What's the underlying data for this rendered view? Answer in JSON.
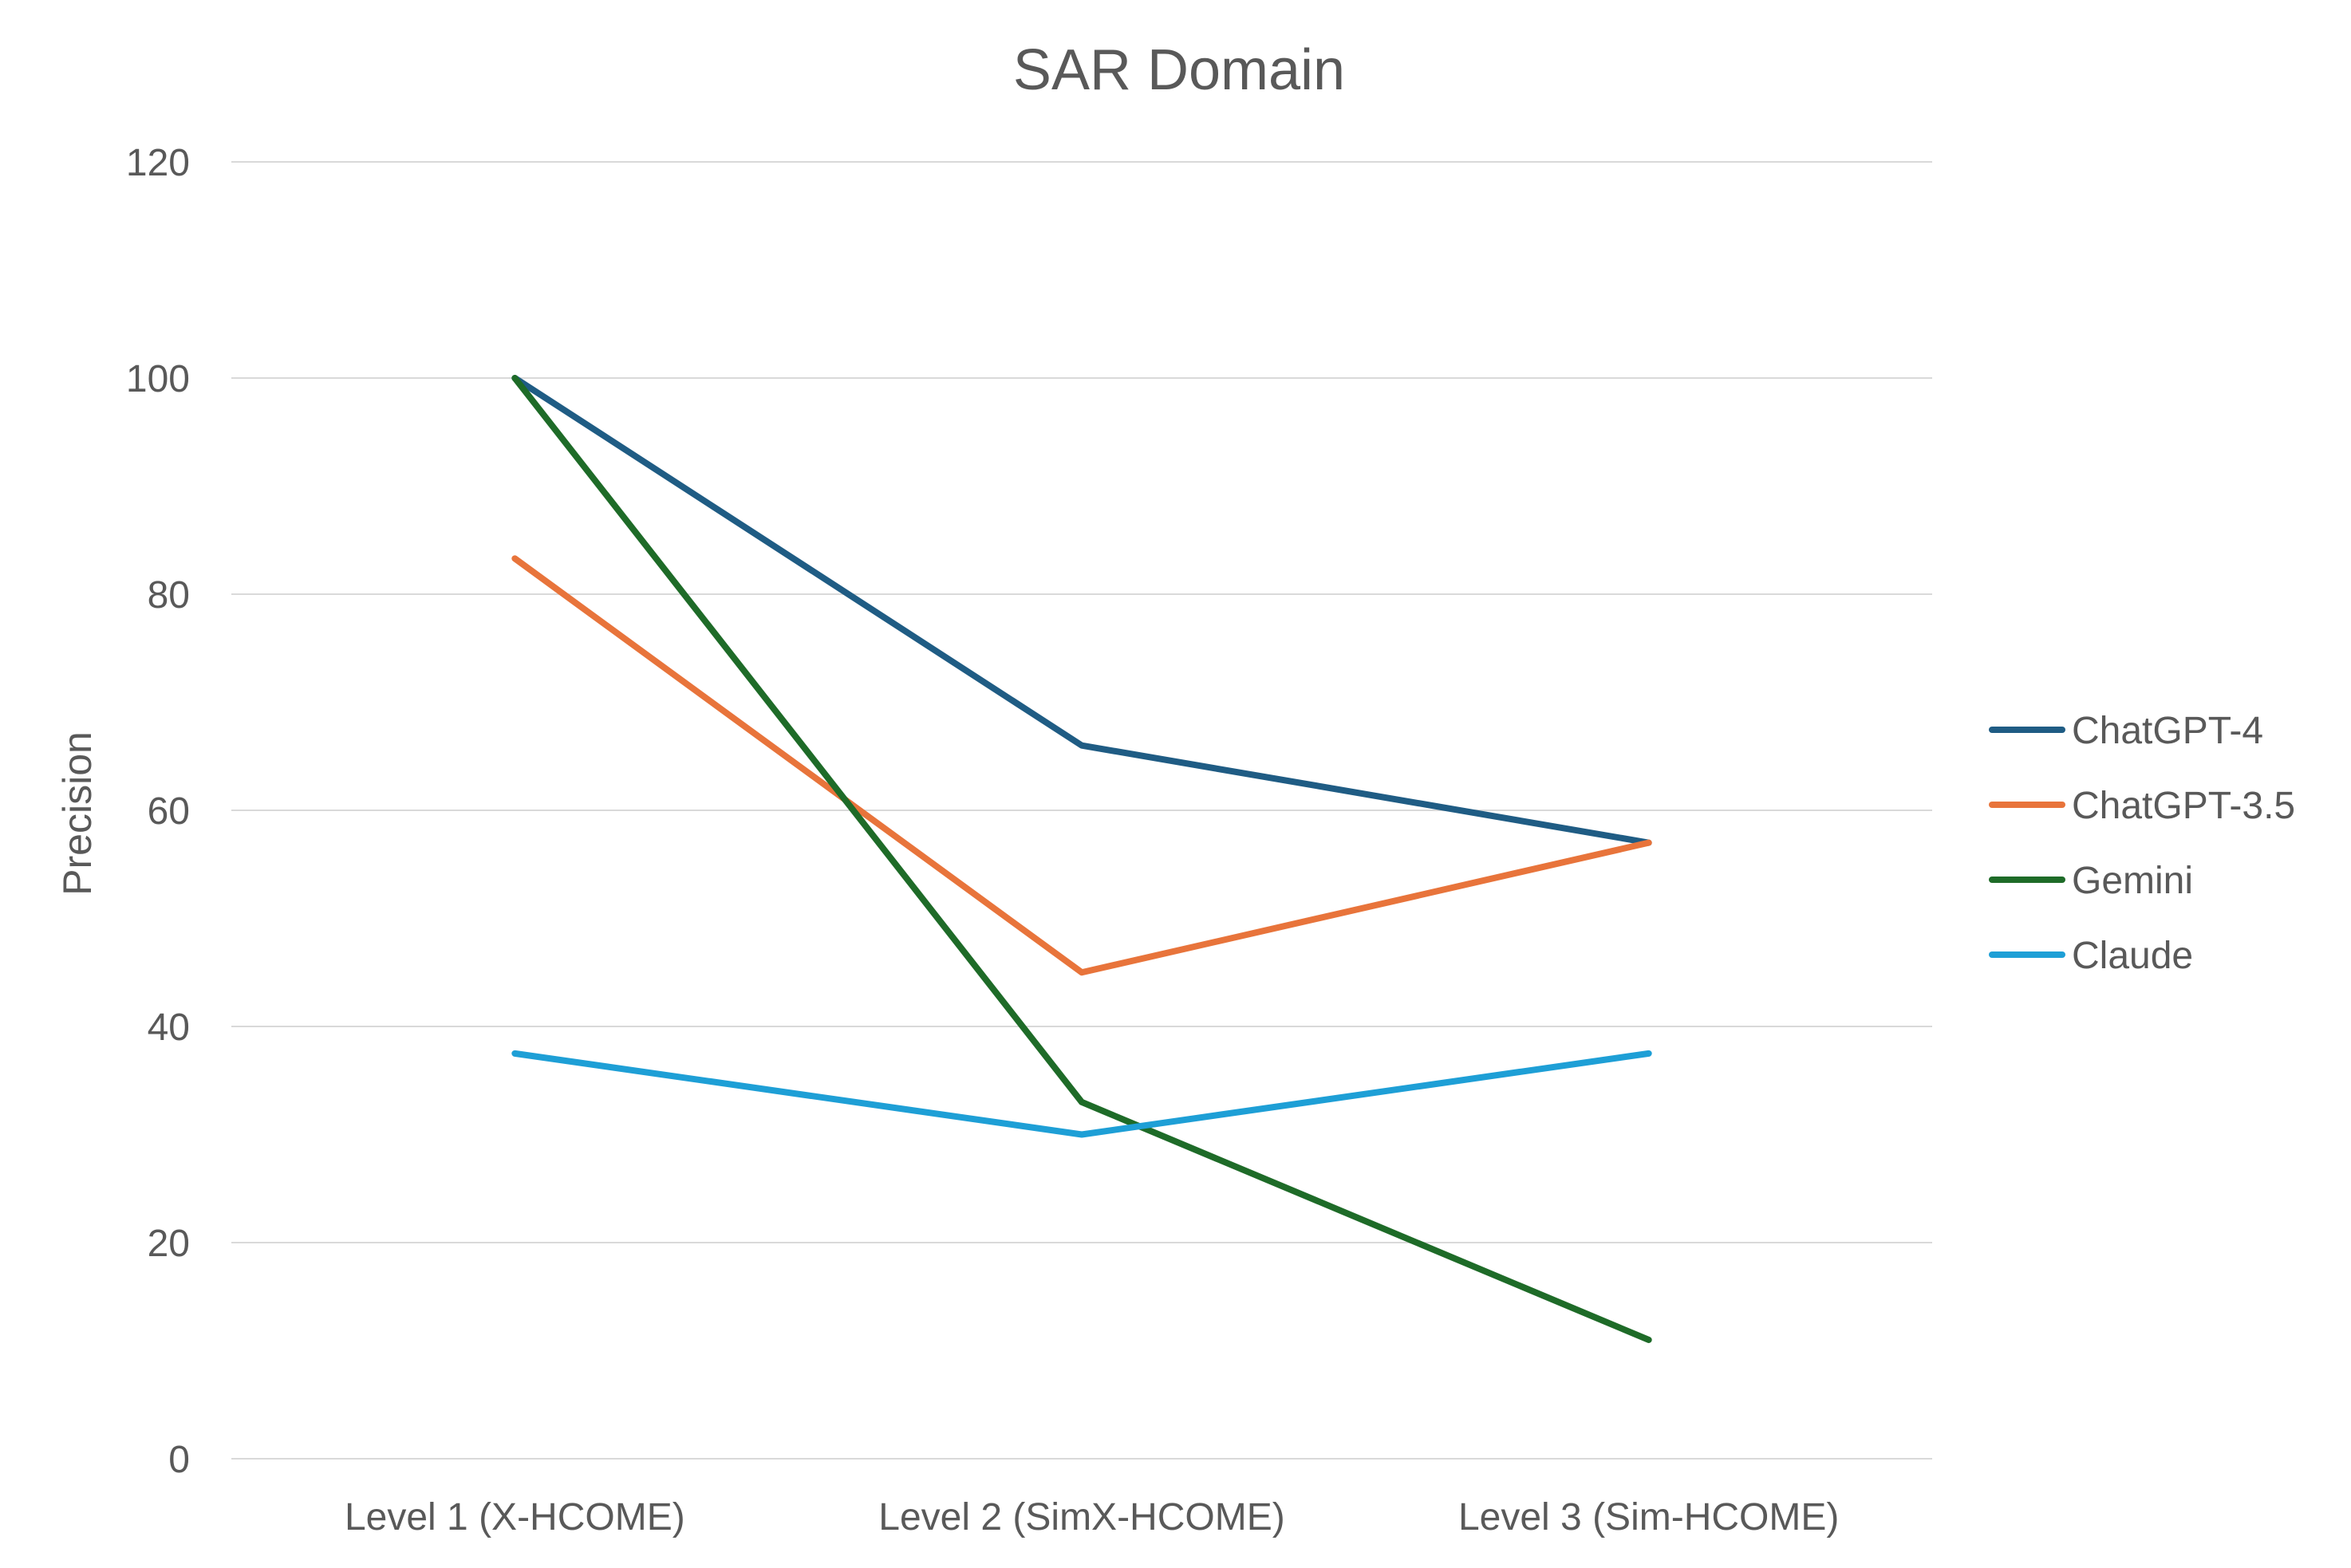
{
  "chart_data": {
    "type": "line",
    "title": "SAR Domain",
    "xlabel": "",
    "ylabel": "Precision",
    "categories": [
      "Level 1 (X-HCOME)",
      "Level 2 (SimX-HCOME)",
      "Level 3 (Sim-HCOME)"
    ],
    "ylim": [
      0,
      120
    ],
    "yticks": [
      0,
      20,
      40,
      60,
      80,
      100,
      120
    ],
    "grid": true,
    "legend_position": "right",
    "series": [
      {
        "name": "ChatGPT-4",
        "color": "#1f5c84",
        "values": [
          100,
          66,
          57
        ]
      },
      {
        "name": "ChatGPT-3.5",
        "color": "#e8743b",
        "values": [
          83.3,
          45,
          57
        ]
      },
      {
        "name": "Gemini",
        "color": "#1e6b28",
        "values": [
          100,
          33,
          11
        ]
      },
      {
        "name": "Claude",
        "color": "#1e9fd6",
        "values": [
          37.5,
          30,
          37.5
        ]
      }
    ]
  }
}
